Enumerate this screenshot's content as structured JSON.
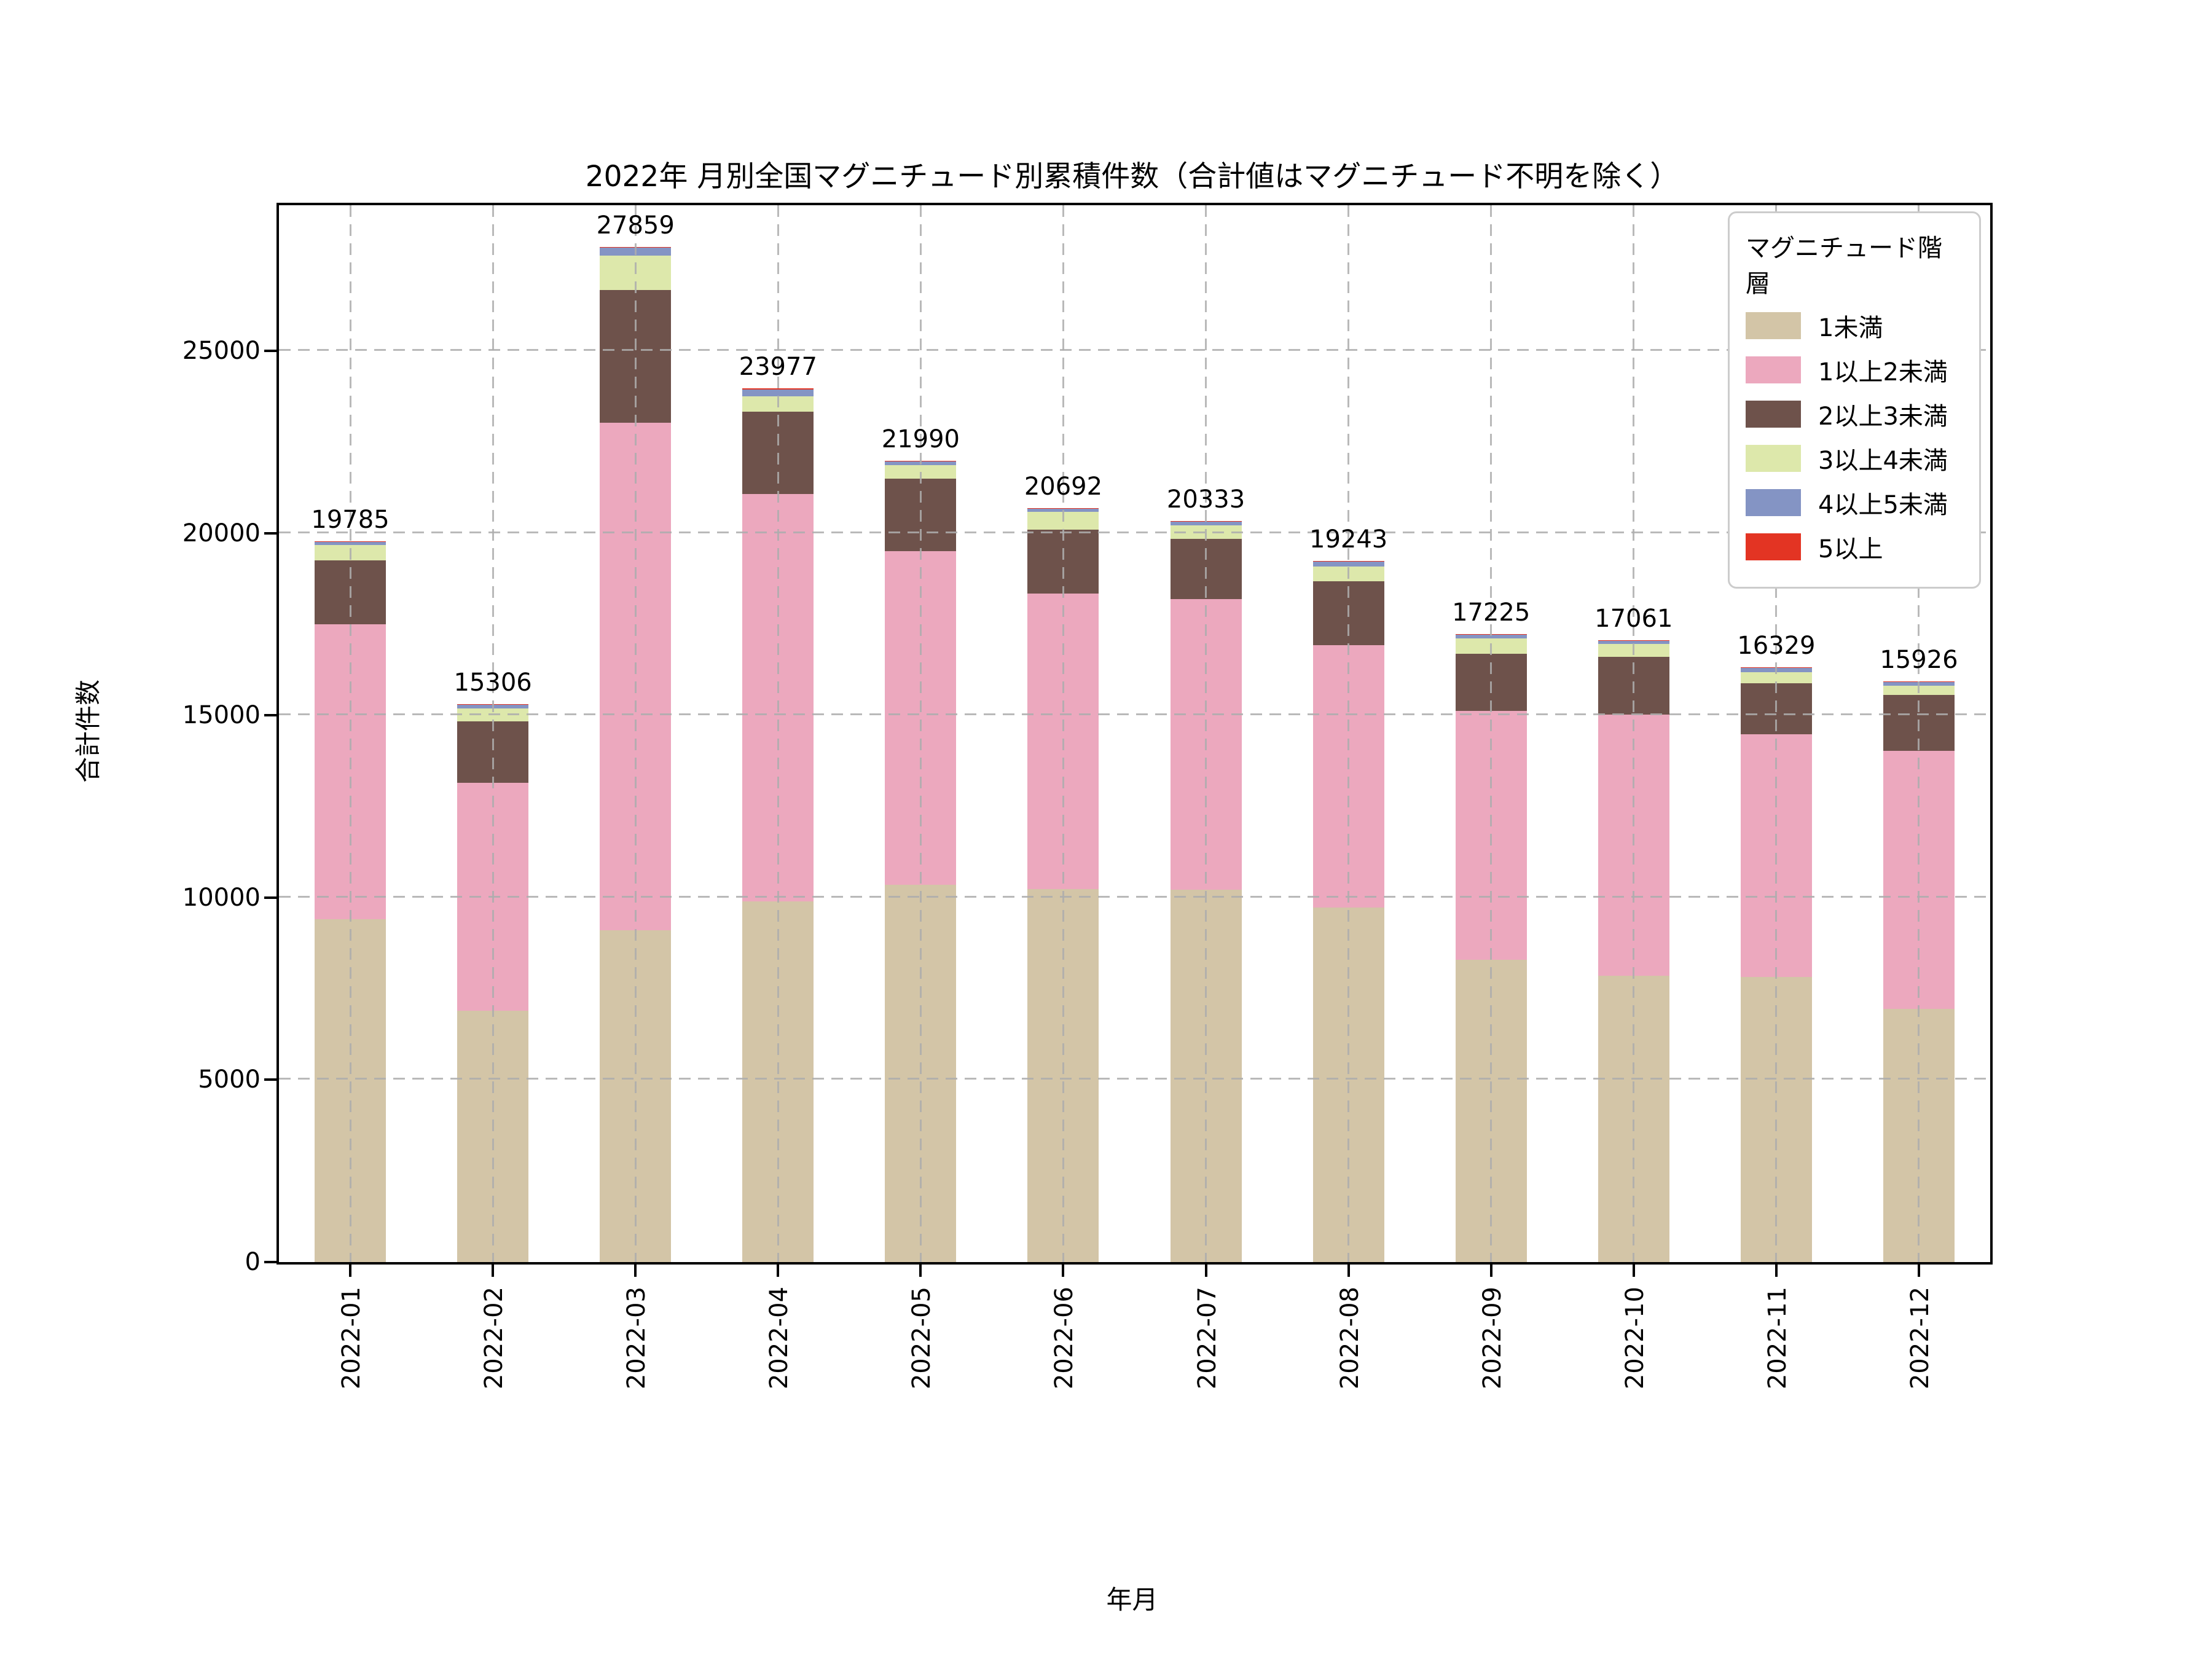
{
  "chart_data": {
    "type": "bar",
    "stacked": true,
    "title": "2022年 月別全国マグニチュード別累積件数（合計値はマグニチュード不明を除く）",
    "xlabel": "年月",
    "ylabel": "合計件数",
    "legend_title": "マグニチュード階層",
    "legend_position": "top-right",
    "grid": true,
    "ylim": [
      0,
      29000
    ],
    "yticks": [
      0,
      5000,
      10000,
      15000,
      20000,
      25000
    ],
    "categories": [
      "2022-01",
      "2022-02",
      "2022-03",
      "2022-04",
      "2022-05",
      "2022-06",
      "2022-07",
      "2022-08",
      "2022-09",
      "2022-10",
      "2022-11",
      "2022-12"
    ],
    "totals": [
      19785,
      15306,
      27859,
      23977,
      21990,
      20692,
      20333,
      19243,
      17225,
      17061,
      16329,
      15926
    ],
    "series": [
      {
        "name": "1未満",
        "color": "#d3c5a7",
        "values": [
          9400,
          6900,
          9100,
          9900,
          10350,
          10240,
          10210,
          9730,
          8300,
          7850,
          7830,
          6940
        ]
      },
      {
        "name": "1以上2未満",
        "color": "#eca8be",
        "values": [
          8100,
          6250,
          13930,
          11170,
          9150,
          8110,
          7980,
          7200,
          6830,
          7180,
          6660,
          7080
        ]
      },
      {
        "name": "2以上3未満",
        "color": "#6e524b",
        "values": [
          1750,
          1680,
          3640,
          2260,
          1990,
          1750,
          1660,
          1750,
          1560,
          1580,
          1400,
          1540
        ]
      },
      {
        "name": "3以上4未満",
        "color": "#dde8ab",
        "values": [
          430,
          360,
          940,
          420,
          380,
          480,
          370,
          410,
          430,
          345,
          300,
          260
        ]
      },
      {
        "name": "4以上5未満",
        "color": "#8494c4",
        "values": [
          100,
          110,
          230,
          200,
          105,
          100,
          100,
          140,
          95,
          95,
          120,
          90
        ]
      },
      {
        "name": "5以上",
        "color": "#e33423",
        "values": [
          5,
          6,
          19,
          27,
          15,
          12,
          13,
          13,
          10,
          11,
          19,
          16
        ]
      }
    ]
  }
}
